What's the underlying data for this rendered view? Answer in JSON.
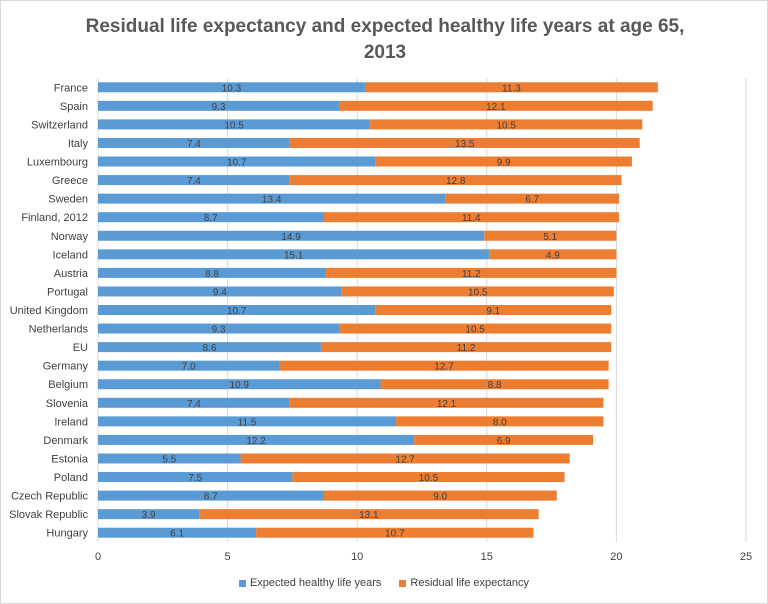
{
  "chart_data": {
    "type": "bar",
    "orientation": "horizontal",
    "stacked": true,
    "title": "Residual life expectancy and  expected healthy life years at age 65, 2013",
    "title_lines": [
      "Residual life expectancy and  expected healthy life years at age 65,",
      "2013"
    ],
    "categories": [
      "France",
      "Spain",
      "Switzerland",
      "Italy",
      "Luxembourg",
      "Greece",
      "Sweden",
      "Finland, 2012",
      "Norway",
      "Iceland",
      "Austria",
      "Portugal",
      "United Kingdom",
      "Netherlands",
      "EU",
      "Germany",
      "Belgium",
      "Slovenia",
      "Ireland",
      "Denmark",
      "Estonia",
      "Poland",
      "Czech Republic",
      "Slovak Republic",
      "Hungary"
    ],
    "series": [
      {
        "name": "Expected healthy life years",
        "color": "#5b9bd5",
        "values": [
          10.3,
          9.3,
          10.5,
          7.4,
          10.7,
          7.4,
          13.4,
          8.7,
          14.9,
          15.1,
          8.8,
          9.4,
          10.7,
          9.3,
          8.6,
          7.0,
          10.9,
          7.4,
          11.5,
          12.2,
          5.5,
          7.5,
          8.7,
          3.9,
          6.1
        ]
      },
      {
        "name": "Residual life expectancy",
        "color": "#ed7d31",
        "values": [
          11.3,
          12.1,
          10.5,
          13.5,
          9.9,
          12.8,
          6.7,
          11.4,
          5.1,
          4.9,
          11.2,
          10.5,
          9.1,
          10.5,
          11.2,
          12.7,
          8.8,
          12.1,
          8.0,
          6.9,
          12.7,
          10.5,
          9.0,
          13.1,
          10.7
        ]
      }
    ],
    "xlim": [
      0,
      25
    ],
    "x_ticks": [
      0,
      5,
      10,
      15,
      20,
      25
    ],
    "data_label_format": "one-decimal",
    "grid": true,
    "legend_position": "bottom"
  }
}
